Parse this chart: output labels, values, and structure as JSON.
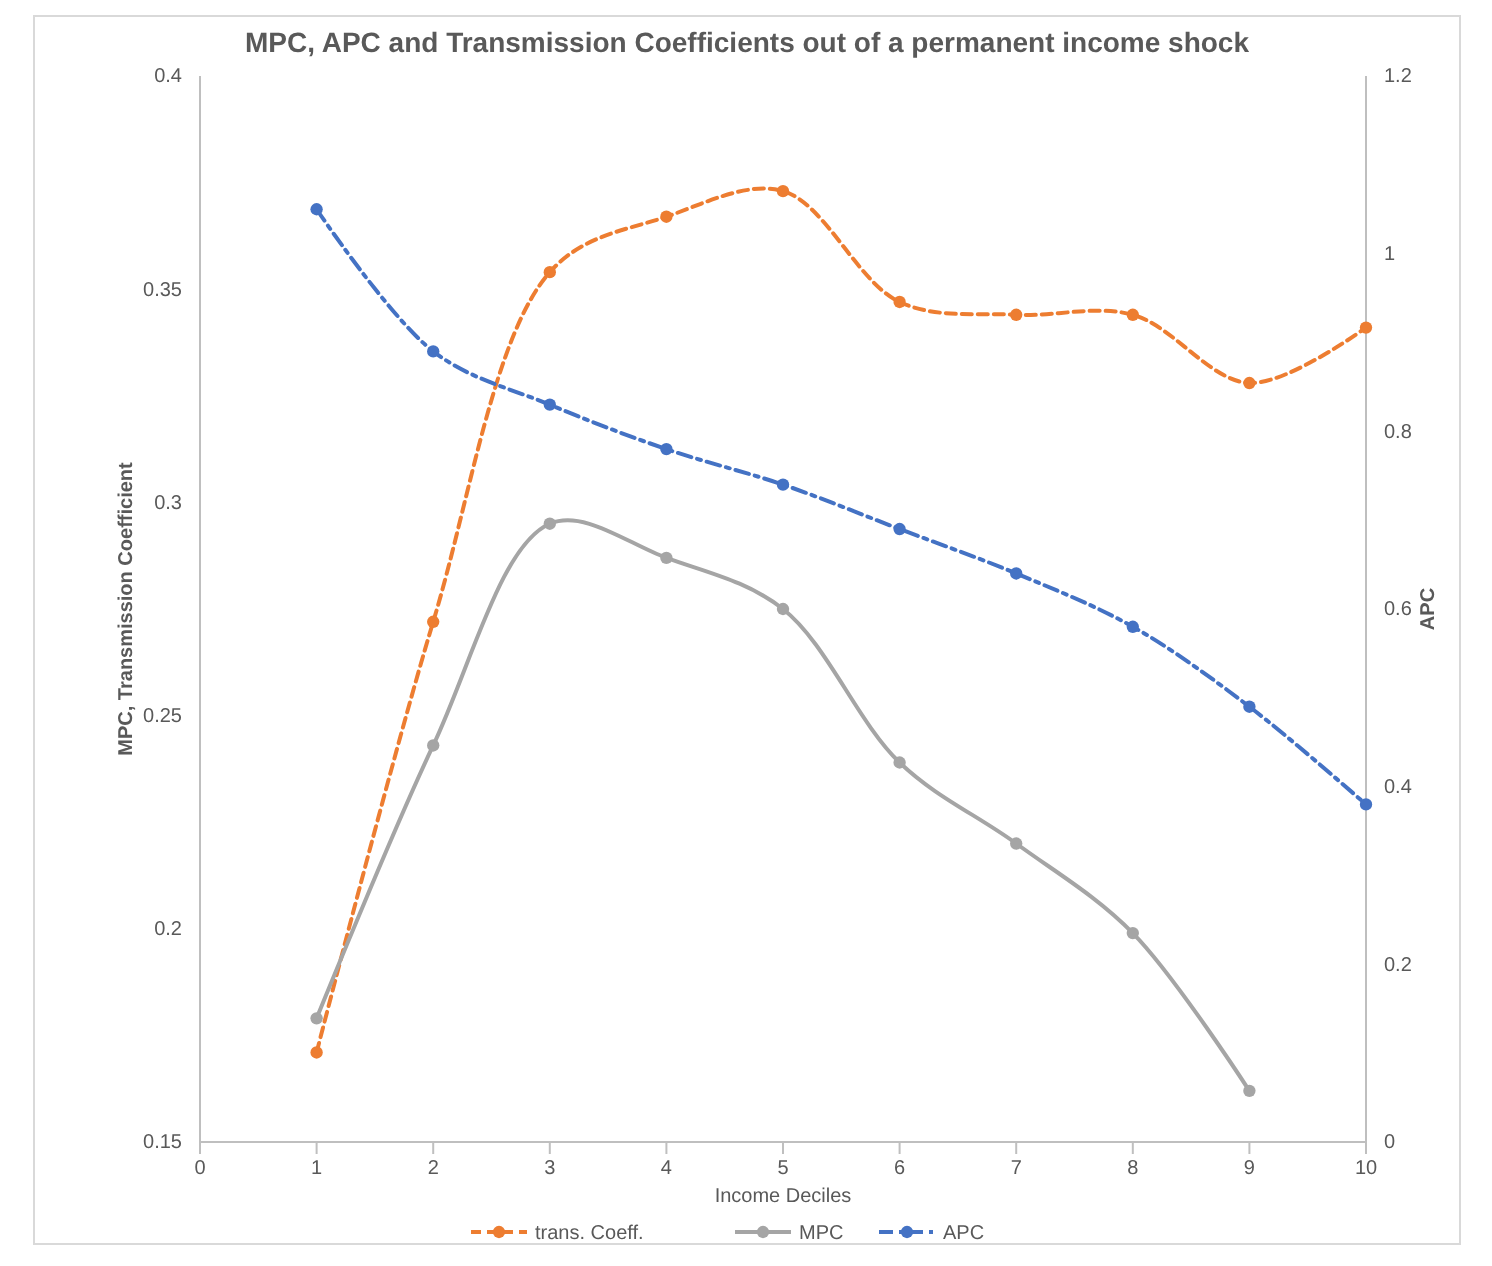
{
  "chart_data": {
    "type": "line",
    "title": "MPC, APC and Transmission Coefficients out of a permanent income shock",
    "xlabel": "Income Deciles",
    "ylabel": "MPC, Transmission Coefficient",
    "y2label": "APC",
    "x": [
      1,
      2,
      3,
      4,
      5,
      6,
      7,
      8,
      9,
      10
    ],
    "xlim": [
      0,
      10
    ],
    "xticks": [
      0,
      1,
      2,
      3,
      4,
      5,
      6,
      7,
      8,
      9,
      10
    ],
    "ylim": [
      0.15,
      0.4
    ],
    "yticks": [
      0.15,
      0.2,
      0.25,
      0.3,
      0.35,
      0.4
    ],
    "y2lim": [
      0,
      1.2
    ],
    "y2ticks": [
      0,
      0.2,
      0.4,
      0.6,
      0.8,
      1,
      1.2
    ],
    "grid": false,
    "legend": "bottom",
    "marker": "circle",
    "series": [
      {
        "name": "trans. Coeff.",
        "color": "#ed7d31",
        "line_style": "dashed",
        "values": [
          0.171,
          0.272,
          0.354,
          0.367,
          0.373,
          0.347,
          0.344,
          0.344,
          0.328,
          0.341
        ]
      },
      {
        "name": "MPC",
        "color": "#a5a5a5",
        "line_style": "solid",
        "values": [
          0.179,
          0.243,
          0.295,
          0.287,
          0.275,
          0.239,
          0.22,
          0.199,
          0.162,
          null
        ]
      },
      {
        "name": "APC",
        "color": "#4472c4",
        "line_style": "dashdot",
        "axis": "y2",
        "values": [
          1.05,
          0.89,
          0.83,
          0.78,
          0.74,
          0.69,
          0.64,
          0.58,
          0.49,
          0.38
        ]
      }
    ]
  }
}
